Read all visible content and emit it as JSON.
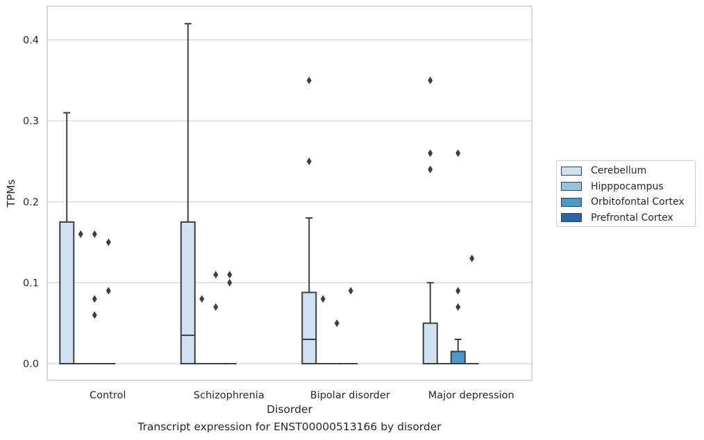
{
  "caption": "Transcript expression for ENST00000513166 by disorder",
  "legend": {
    "items": [
      {
        "label": "Cerebellum",
        "color": "#d0e1f2"
      },
      {
        "label": "Hipppocampus",
        "color": "#94c4df"
      },
      {
        "label": "Orbitofontal Cortex",
        "color": "#4b98c9"
      },
      {
        "label": "Prefrontal Cortex",
        "color": "#2666a8"
      }
    ]
  },
  "chart_data": {
    "type": "box",
    "xlabel": "Disorder",
    "ylabel": "TPMs",
    "ylim": [
      -0.02,
      0.44
    ],
    "yticks": [
      0.0,
      0.1,
      0.2,
      0.3,
      0.4
    ],
    "ytick_labels": [
      "0.0",
      "0.1",
      "0.2",
      "0.3",
      "0.4"
    ],
    "grid": true,
    "legend_placement": "right",
    "categories": [
      "Control",
      "Schizophrenia",
      "Bipolar disorder",
      "Major depression"
    ],
    "series": [
      {
        "name": "Cerebellum",
        "color": "#d0e1f2",
        "boxes": [
          {
            "q1": 0,
            "median": 0,
            "q3": 0.175,
            "whisker_low": 0,
            "whisker_high": 0.31,
            "outliers": []
          },
          {
            "q1": 0,
            "median": 0.035,
            "q3": 0.175,
            "whisker_low": 0,
            "whisker_high": 0.42,
            "outliers": []
          },
          {
            "q1": 0,
            "median": 0.03,
            "q3": 0.088,
            "whisker_low": 0,
            "whisker_high": 0.18,
            "outliers": [
              0.25,
              0.35
            ]
          },
          {
            "q1": 0,
            "median": 0,
            "q3": 0.05,
            "whisker_low": 0,
            "whisker_high": 0.1,
            "outliers": [
              0.24,
              0.26,
              0.35
            ]
          }
        ]
      },
      {
        "name": "Hipppocampus",
        "color": "#94c4df",
        "boxes": [
          {
            "q1": 0,
            "median": 0,
            "q3": 0,
            "whisker_low": 0,
            "whisker_high": 0,
            "outliers": [
              0.16
            ]
          },
          {
            "q1": 0,
            "median": 0,
            "q3": 0,
            "whisker_low": 0,
            "whisker_high": 0,
            "outliers": [
              0.08
            ]
          },
          {
            "q1": 0,
            "median": 0,
            "q3": 0,
            "whisker_low": 0,
            "whisker_high": 0,
            "outliers": [
              0.08
            ]
          },
          {
            "q1": 0,
            "median": 0,
            "q3": 0,
            "whisker_low": 0,
            "whisker_high": 0,
            "outliers": []
          }
        ]
      },
      {
        "name": "Orbitofontal Cortex",
        "color": "#4b98c9",
        "boxes": [
          {
            "q1": 0,
            "median": 0,
            "q3": 0,
            "whisker_low": 0,
            "whisker_high": 0,
            "outliers": [
              0.06,
              0.08,
              0.16
            ]
          },
          {
            "q1": 0,
            "median": 0,
            "q3": 0,
            "whisker_low": 0,
            "whisker_high": 0,
            "outliers": [
              0.07,
              0.11
            ]
          },
          {
            "q1": 0,
            "median": 0,
            "q3": 0,
            "whisker_low": 0,
            "whisker_high": 0,
            "outliers": [
              0.05
            ]
          },
          {
            "q1": 0,
            "median": 0,
            "q3": 0.015,
            "whisker_low": 0,
            "whisker_high": 0.03,
            "outliers": [
              0.07,
              0.09,
              0.26
            ]
          }
        ]
      },
      {
        "name": "Prefrontal Cortex",
        "color": "#2666a8",
        "boxes": [
          {
            "q1": 0,
            "median": 0,
            "q3": 0,
            "whisker_low": 0,
            "whisker_high": 0,
            "outliers": [
              0.09,
              0.15
            ]
          },
          {
            "q1": 0,
            "median": 0,
            "q3": 0,
            "whisker_low": 0,
            "whisker_high": 0,
            "outliers": [
              0.1,
              0.11
            ]
          },
          {
            "q1": 0,
            "median": 0,
            "q3": 0,
            "whisker_low": 0,
            "whisker_high": 0,
            "outliers": [
              0.09
            ]
          },
          {
            "q1": 0,
            "median": 0,
            "q3": 0,
            "whisker_low": 0,
            "whisker_high": 0,
            "outliers": [
              0.13
            ]
          }
        ]
      }
    ]
  }
}
